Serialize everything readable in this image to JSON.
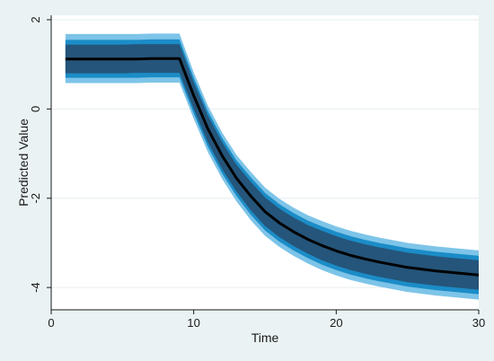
{
  "chart_data": {
    "type": "line",
    "title": "",
    "xlabel": "Time",
    "ylabel": "Predicted Value",
    "xlim": [
      0,
      30
    ],
    "ylim": [
      -4.5,
      2.1
    ],
    "x_ticks": [
      0,
      10,
      20,
      30
    ],
    "y_ticks": [
      2,
      0,
      -2,
      -4
    ],
    "x_tick_labels": [
      "0",
      "10",
      "20",
      "30"
    ],
    "y_tick_labels": [
      "2",
      "0",
      "-2",
      "-4"
    ],
    "grid": "horizontal",
    "colors": {
      "outer_band": "#7dc4e8",
      "middle_band": "#1b8cc7",
      "inner_band": "#25557a",
      "line": "#000000",
      "plot_background": "#ffffff",
      "figure_background": "#eaf2f3",
      "grid": "#e6eeef"
    },
    "series": [
      {
        "x": [
          1,
          2,
          3,
          4,
          5,
          6,
          7,
          8,
          9,
          10,
          11,
          12,
          13,
          14,
          15,
          16,
          17,
          18,
          19,
          20,
          21,
          22,
          23,
          24,
          25,
          26,
          27,
          28,
          29,
          30
        ],
        "values": [
          1.12,
          1.12,
          1.12,
          1.12,
          1.12,
          1.12,
          1.13,
          1.13,
          1.13,
          0.3,
          -0.45,
          -1.05,
          -1.55,
          -1.95,
          -2.3,
          -2.55,
          -2.75,
          -2.92,
          -3.06,
          -3.18,
          -3.28,
          -3.36,
          -3.43,
          -3.49,
          -3.55,
          -3.59,
          -3.63,
          -3.66,
          -3.69,
          -3.72
        ],
        "ci_inner_upper": [
          1.44,
          1.44,
          1.44,
          1.44,
          1.44,
          1.45,
          1.45,
          1.45,
          1.45,
          0.6,
          -0.15,
          -0.75,
          -1.25,
          -1.63,
          -1.98,
          -2.23,
          -2.43,
          -2.6,
          -2.73,
          -2.85,
          -2.95,
          -3.03,
          -3.1,
          -3.16,
          -3.22,
          -3.26,
          -3.3,
          -3.33,
          -3.36,
          -3.39
        ],
        "ci_inner_lower": [
          0.8,
          0.8,
          0.8,
          0.8,
          0.8,
          0.81,
          0.81,
          0.81,
          0.81,
          0.0,
          -0.75,
          -1.35,
          -1.85,
          -2.27,
          -2.62,
          -2.87,
          -3.07,
          -3.24,
          -3.39,
          -3.51,
          -3.61,
          -3.69,
          -3.76,
          -3.82,
          -3.88,
          -3.92,
          -3.96,
          -3.99,
          -4.02,
          -4.05
        ],
        "ci_middle_upper": [
          1.55,
          1.55,
          1.55,
          1.55,
          1.55,
          1.55,
          1.56,
          1.56,
          1.56,
          0.7,
          -0.05,
          -0.65,
          -1.15,
          -1.53,
          -1.88,
          -2.13,
          -2.33,
          -2.5,
          -2.63,
          -2.75,
          -2.85,
          -2.93,
          -3.0,
          -3.06,
          -3.12,
          -3.16,
          -3.2,
          -3.23,
          -3.26,
          -3.29
        ],
        "ci_middle_lower": [
          0.7,
          0.7,
          0.7,
          0.7,
          0.7,
          0.7,
          0.71,
          0.71,
          0.71,
          -0.1,
          -0.85,
          -1.45,
          -1.95,
          -2.37,
          -2.72,
          -2.97,
          -3.17,
          -3.34,
          -3.49,
          -3.61,
          -3.71,
          -3.79,
          -3.86,
          -3.92,
          -3.98,
          -4.02,
          -4.06,
          -4.09,
          -4.12,
          -4.15
        ],
        "ci_outer_upper": [
          1.68,
          1.68,
          1.68,
          1.68,
          1.68,
          1.68,
          1.69,
          1.69,
          1.69,
          0.82,
          0.07,
          -0.53,
          -1.03,
          -1.41,
          -1.76,
          -2.01,
          -2.21,
          -2.38,
          -2.51,
          -2.63,
          -2.73,
          -2.81,
          -2.88,
          -2.94,
          -3.0,
          -3.04,
          -3.08,
          -3.11,
          -3.14,
          -3.17
        ],
        "ci_outer_lower": [
          0.58,
          0.58,
          0.58,
          0.58,
          0.58,
          0.58,
          0.59,
          0.59,
          0.59,
          -0.22,
          -0.97,
          -1.57,
          -2.07,
          -2.49,
          -2.84,
          -3.09,
          -3.29,
          -3.46,
          -3.61,
          -3.73,
          -3.83,
          -3.91,
          -3.98,
          -4.04,
          -4.1,
          -4.14,
          -4.18,
          -4.21,
          -4.24,
          -4.27
        ]
      }
    ]
  }
}
